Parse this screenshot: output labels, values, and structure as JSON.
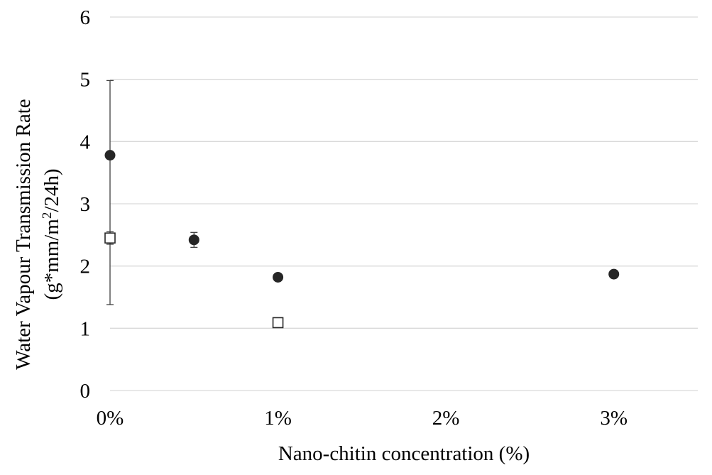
{
  "chart_data": {
    "type": "scatter",
    "title": "",
    "xlabel": "Nano-chitin concentration (%)",
    "ylabel_line1": "Water Vapour Transmission Rate",
    "ylabel_line2_prefix": "(g*mm/m",
    "ylabel_line2_sup": "2",
    "ylabel_line2_suffix": "/24h)",
    "xlim": [
      0,
      3.5
    ],
    "ylim": [
      0,
      6
    ],
    "x_ticks": [
      {
        "value": 0,
        "label": "0%"
      },
      {
        "value": 1,
        "label": "1%"
      },
      {
        "value": 2,
        "label": "2%"
      },
      {
        "value": 3,
        "label": "3%"
      }
    ],
    "y_ticks": [
      {
        "value": 0,
        "label": "0"
      },
      {
        "value": 1,
        "label": "1"
      },
      {
        "value": 2,
        "label": "2"
      },
      {
        "value": 3,
        "label": "3"
      },
      {
        "value": 4,
        "label": "4"
      },
      {
        "value": 5,
        "label": "5"
      },
      {
        "value": 6,
        "label": "6"
      }
    ],
    "grid": true,
    "legend": "none",
    "series": [
      {
        "marker": "filled-circle",
        "color": "#262626",
        "points": [
          {
            "x": 0,
            "y": 3.78,
            "err_low": 2.4,
            "err_high": 1.2
          },
          {
            "x": 0.5,
            "y": 2.42,
            "err_low": 0.12,
            "err_high": 0.12
          },
          {
            "x": 1,
            "y": 1.82,
            "err_low": 0.04,
            "err_high": 0.04
          },
          {
            "x": 3,
            "y": 1.87,
            "err_low": 0,
            "err_high": 0
          }
        ]
      },
      {
        "marker": "open-square",
        "color": "#262626",
        "points": [
          {
            "x": 0,
            "y": 2.45,
            "err_low": 0.1,
            "err_high": 0.1
          },
          {
            "x": 1,
            "y": 1.09,
            "err_low": 0.06,
            "err_high": 0.06
          }
        ]
      }
    ]
  }
}
